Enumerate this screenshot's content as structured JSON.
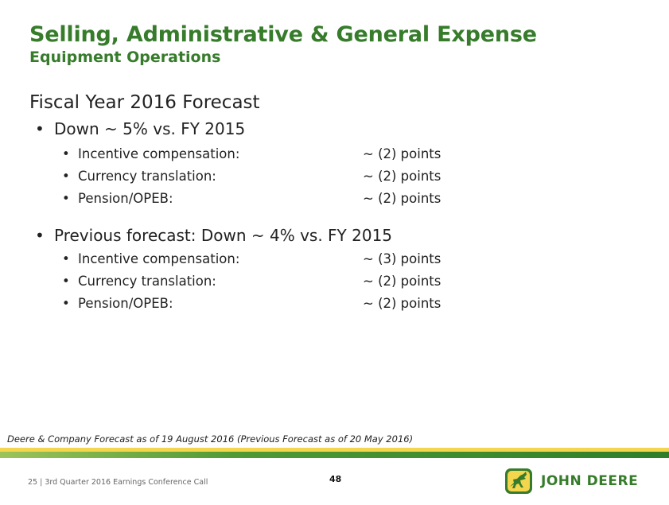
{
  "title": "Selling, Administrative & General Expense",
  "subtitle": "Equipment Operations",
  "heading": "Fiscal Year 2016 Forecast",
  "bullet_glyph": "•",
  "current": {
    "label": "Down ~ 5% vs. FY 2015",
    "items": [
      {
        "label": "Incentive compensation:",
        "value": "~ (2) points"
      },
      {
        "label": "Currency translation:",
        "value": "~ (2) points"
      },
      {
        "label": "Pension/OPEB:",
        "value": "~ (2) points"
      }
    ]
  },
  "previous": {
    "label": "Previous forecast: Down ~ 4% vs. FY 2015",
    "items": [
      {
        "label": "Incentive compensation:",
        "value": "~ (3) points"
      },
      {
        "label": "Currency translation:",
        "value": "~ (2) points"
      },
      {
        "label": "Pension/OPEB:",
        "value": "~ (2) points"
      }
    ]
  },
  "footnote": "Deere & Company Forecast as of 19 August 2016 (Previous Forecast as of 20 May 2016)",
  "footer": {
    "text": "25  |  3rd Quarter 2016 Earnings Conference Call",
    "page_number": "48",
    "logo_text": "JOHN DEERE"
  },
  "colors": {
    "brand_green": "#367c2b",
    "brand_yellow": "#f3d54e"
  }
}
